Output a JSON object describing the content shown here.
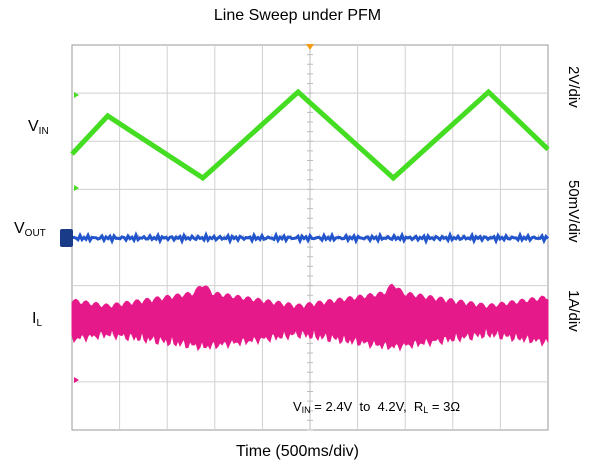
{
  "chart_data": {
    "type": "line",
    "title": "Line Sweep under PFM",
    "xlabel": "Time (500ms/div)",
    "x_divisions": 10,
    "y_divisions": 8,
    "grid": true,
    "series": [
      {
        "name": "VIN",
        "label_main": "V",
        "label_sub": "IN",
        "scale": "2V/div",
        "color": "#44dd22",
        "kind": "triangle",
        "unit": "V",
        "x": [
          0,
          0.75,
          2.75,
          4.75,
          6.75,
          8.75,
          10
        ],
        "y": [
          2.9,
          3.7,
          2.4,
          4.2,
          2.4,
          4.2,
          3.0
        ]
      },
      {
        "name": "VOUT",
        "label_main": "V",
        "label_sub": "OUT",
        "scale": "50mV/div",
        "color": "#2255cc",
        "kind": "flat-noise"
      },
      {
        "name": "IL",
        "label_main": "I",
        "label_sub": "L",
        "scale": "1A/div",
        "color": "#e6198a",
        "kind": "burst"
      }
    ],
    "annotation": {
      "vin_main": "V",
      "vin_sub": "IN",
      "range": " = 2.4V  to  4.2V,  ",
      "rl_main": "R",
      "rl_sub": "L",
      "rl_value": " = 3Ω"
    }
  }
}
